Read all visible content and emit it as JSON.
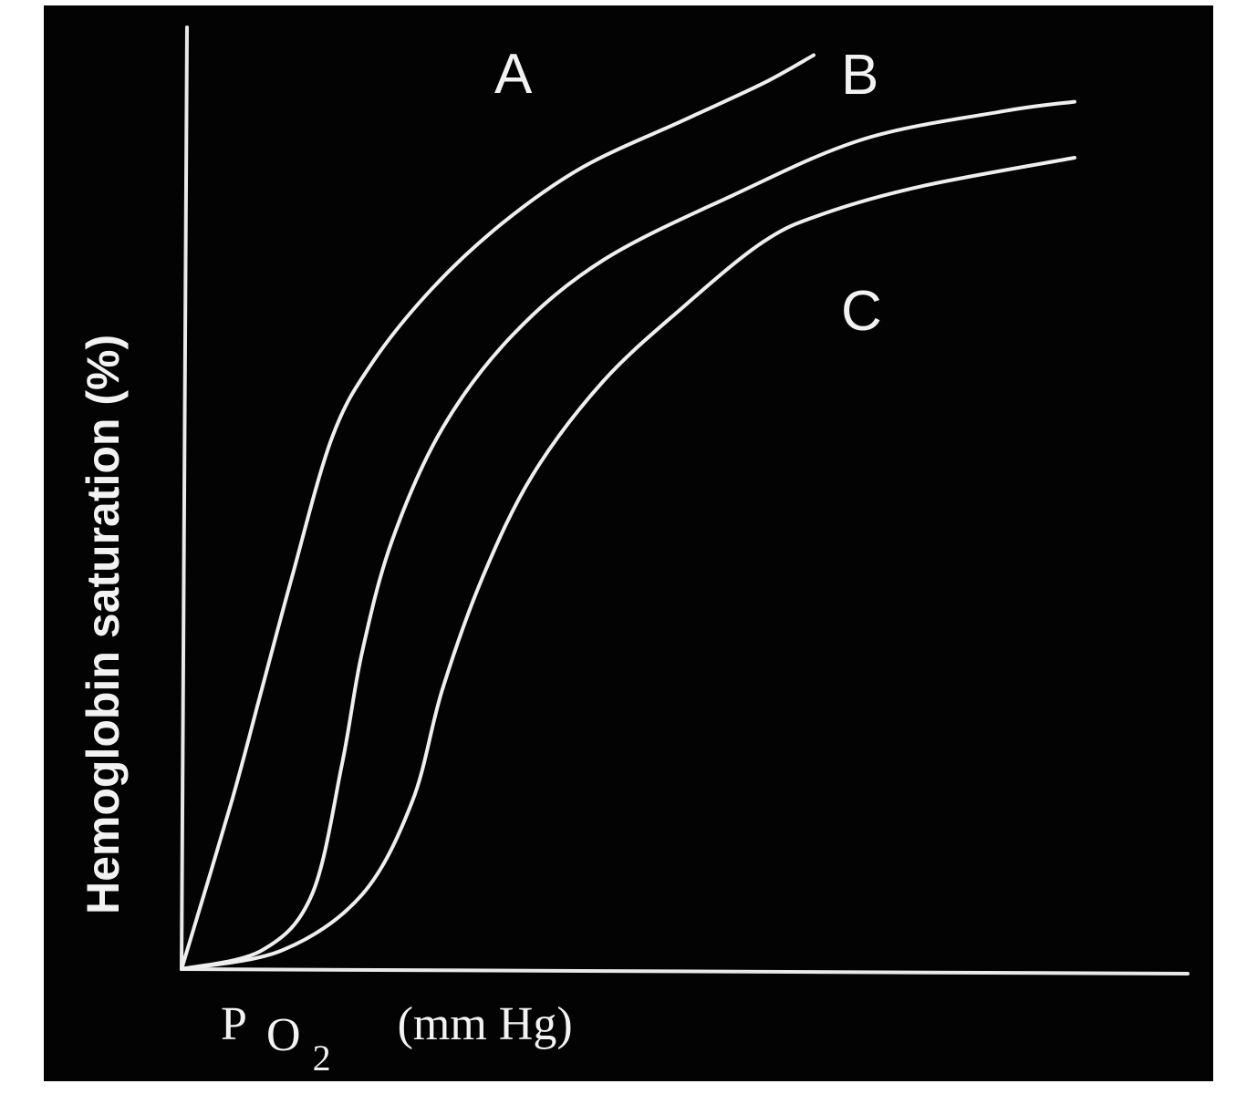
{
  "chart_data": {
    "type": "line",
    "ylabel": "Hemoglobin saturation (%)",
    "xlabel": {
      "main_P": "P",
      "main_O": "O",
      "sub": "2",
      "unit": "(mm Hg)"
    },
    "x_range": [
      0,
      100
    ],
    "y_range": [
      0,
      100
    ],
    "grid": false,
    "background_color": "#030303",
    "line_color": "#efefef",
    "series": [
      {
        "name": "A",
        "x": [
          0,
          5,
          8,
          11,
          15,
          19,
          25,
          32,
          40,
          50,
          58,
          63
        ],
        "values": [
          0,
          18,
          30,
          42,
          57,
          65,
          73,
          80,
          86,
          91,
          95,
          98
        ]
      },
      {
        "name": "B",
        "x": [
          0,
          8,
          13,
          16,
          18,
          21,
          26,
          33,
          42,
          55,
          68,
          82,
          89
        ],
        "values": [
          0,
          2,
          8,
          22,
          34,
          46,
          58,
          68,
          76,
          83,
          89,
          92,
          93
        ]
      },
      {
        "name": "C",
        "x": [
          0,
          10,
          18,
          23,
          26,
          30,
          35,
          42,
          50,
          58,
          64,
          74,
          89
        ],
        "values": [
          0,
          2,
          8,
          18,
          30,
          42,
          53,
          63,
          71,
          78,
          81,
          84,
          87
        ]
      }
    ]
  }
}
